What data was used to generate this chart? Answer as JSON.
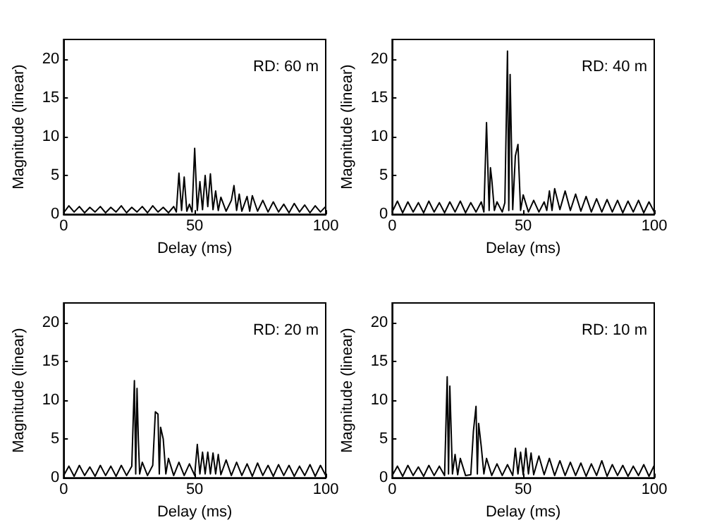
{
  "chart_data": [
    {
      "type": "line",
      "xlabel": "Delay (ms)",
      "ylabel": "Magnitude (linear)",
      "xlim": [
        0,
        100
      ],
      "xticks": [
        0,
        50,
        100
      ],
      "ylim": [
        0,
        22.5
      ],
      "yticks": [
        0,
        5,
        10,
        15,
        20
      ],
      "annotations": [
        "RD: 60 m"
      ],
      "grid": false,
      "marker": "none",
      "line_style": "solid",
      "series": [
        {
          "color": "#000000",
          "x": [
            0,
            2,
            4,
            6,
            8,
            10,
            12,
            14,
            16,
            18,
            20,
            22,
            24,
            26,
            28,
            30,
            32,
            34,
            36,
            38,
            40,
            42,
            43,
            44,
            45,
            46,
            47,
            48,
            49,
            50,
            51,
            52,
            53,
            54,
            55,
            56,
            57,
            58,
            59,
            60,
            62,
            64,
            65,
            66,
            67,
            68,
            70,
            71,
            72,
            74,
            76,
            78,
            80,
            82,
            84,
            86,
            88,
            90,
            92,
            94,
            96,
            98,
            100
          ],
          "values": [
            0.2,
            1.1,
            0.3,
            1.0,
            0.2,
            0.9,
            0.3,
            1.0,
            0.2,
            0.9,
            0.3,
            1.1,
            0.2,
            0.9,
            0.3,
            1.0,
            0.2,
            1.1,
            0.3,
            0.9,
            0.2,
            1.0,
            0.3,
            5.3,
            0.5,
            4.8,
            0.4,
            1.3,
            0.3,
            8.5,
            0.5,
            4.2,
            0.6,
            5.0,
            1.0,
            5.2,
            0.6,
            3.0,
            0.5,
            2.2,
            0.4,
            1.8,
            3.7,
            0.5,
            2.6,
            0.4,
            2.3,
            0.4,
            2.4,
            0.4,
            1.8,
            0.3,
            1.6,
            0.3,
            1.3,
            0.2,
            1.4,
            0.3,
            1.2,
            0.2,
            1.1,
            0.3,
            1.0
          ]
        }
      ]
    },
    {
      "type": "line",
      "xlabel": "Delay (ms)",
      "ylabel": "Magnitude (linear)",
      "xlim": [
        0,
        100
      ],
      "xticks": [
        0,
        50,
        100
      ],
      "ylim": [
        0,
        22.5
      ],
      "yticks": [
        0,
        5,
        10,
        15,
        20
      ],
      "annotations": [
        "RD: 40 m"
      ],
      "grid": false,
      "marker": "none",
      "line_style": "solid",
      "series": [
        {
          "color": "#000000",
          "x": [
            0,
            2,
            4,
            6,
            8,
            10,
            12,
            14,
            16,
            18,
            20,
            22,
            24,
            26,
            28,
            30,
            32,
            34,
            35,
            36,
            37,
            37.5,
            38,
            39,
            40,
            42,
            43,
            44,
            44.5,
            45,
            46,
            47,
            48,
            49,
            50,
            52,
            54,
            56,
            58,
            59,
            60,
            61,
            62,
            64,
            66,
            68,
            70,
            72,
            74,
            76,
            78,
            80,
            82,
            84,
            86,
            88,
            90,
            92,
            94,
            96,
            98,
            100
          ],
          "values": [
            0.3,
            1.7,
            0.2,
            1.6,
            0.3,
            1.5,
            0.2,
            1.7,
            0.3,
            1.5,
            0.2,
            1.6,
            0.3,
            1.7,
            0.2,
            1.5,
            0.3,
            1.6,
            0.3,
            11.8,
            0.5,
            6.0,
            4.5,
            0.5,
            1.6,
            0.3,
            1.5,
            21.0,
            0.5,
            18.0,
            0.6,
            7.5,
            9.0,
            0.5,
            2.5,
            0.3,
            1.8,
            0.3,
            1.6,
            0.5,
            3.0,
            0.5,
            3.3,
            0.6,
            3.0,
            0.5,
            2.6,
            0.4,
            2.3,
            0.3,
            2.0,
            0.3,
            1.9,
            0.3,
            1.8,
            0.2,
            1.7,
            0.3,
            1.8,
            0.2,
            1.6,
            0.3
          ]
        }
      ]
    },
    {
      "type": "line",
      "xlabel": "Delay (ms)",
      "ylabel": "Magnitude (linear)",
      "xlim": [
        0,
        100
      ],
      "xticks": [
        0,
        50,
        100
      ],
      "ylim": [
        0,
        22.5
      ],
      "yticks": [
        0,
        5,
        10,
        15,
        20
      ],
      "annotations": [
        "RD: 20 m"
      ],
      "grid": false,
      "marker": "none",
      "line_style": "solid",
      "series": [
        {
          "color": "#000000",
          "x": [
            0,
            2,
            4,
            6,
            8,
            10,
            12,
            14,
            16,
            18,
            20,
            22,
            24,
            26,
            27,
            27.5,
            28,
            28.5,
            29,
            30,
            32,
            34,
            35,
            36,
            36.5,
            37,
            38,
            39,
            40,
            42,
            44,
            46,
            48,
            50,
            51,
            52,
            53,
            54,
            55,
            56,
            57,
            58,
            59,
            60,
            62,
            64,
            66,
            68,
            70,
            72,
            74,
            76,
            78,
            80,
            82,
            84,
            86,
            88,
            90,
            92,
            94,
            96,
            98,
            100
          ],
          "values": [
            0.3,
            1.5,
            0.2,
            1.6,
            0.3,
            1.4,
            0.2,
            1.6,
            0.3,
            1.5,
            0.2,
            1.6,
            0.3,
            1.5,
            12.5,
            0.5,
            11.5,
            5.0,
            0.5,
            2.0,
            0.3,
            1.6,
            8.5,
            8.2,
            0.5,
            6.5,
            5.0,
            0.5,
            2.5,
            0.3,
            2.0,
            0.3,
            1.8,
            0.3,
            4.3,
            0.5,
            3.3,
            0.5,
            3.3,
            0.5,
            3.2,
            0.5,
            3.0,
            0.4,
            2.3,
            0.3,
            2.0,
            0.3,
            1.8,
            0.2,
            1.9,
            0.3,
            1.6,
            0.2,
            1.7,
            0.3,
            1.6,
            0.2,
            1.5,
            0.3,
            1.7,
            0.2,
            1.6,
            0.3
          ]
        }
      ]
    },
    {
      "type": "line",
      "xlabel": "Delay (ms)",
      "ylabel": "Magnitude (linear)",
      "xlim": [
        0,
        100
      ],
      "xticks": [
        0,
        50,
        100
      ],
      "ylim": [
        0,
        22.5
      ],
      "yticks": [
        0,
        5,
        10,
        15,
        20
      ],
      "annotations": [
        "RD: 10 m"
      ],
      "grid": false,
      "marker": "none",
      "line_style": "solid",
      "series": [
        {
          "color": "#000000",
          "x": [
            0,
            2,
            4,
            6,
            8,
            10,
            12,
            14,
            16,
            18,
            20,
            21,
            21.5,
            22,
            23,
            24,
            25,
            26,
            28,
            30,
            31,
            32,
            32.5,
            33,
            34,
            35,
            36,
            38,
            40,
            42,
            44,
            46,
            47,
            48,
            49,
            50,
            51,
            52,
            53,
            54,
            56,
            58,
            60,
            62,
            64,
            66,
            68,
            70,
            72,
            74,
            76,
            78,
            80,
            82,
            84,
            86,
            88,
            90,
            92,
            94,
            96,
            98,
            100
          ],
          "values": [
            0.3,
            1.5,
            0.2,
            1.6,
            0.3,
            1.4,
            0.2,
            1.6,
            0.3,
            1.5,
            0.3,
            13.0,
            0.5,
            11.8,
            0.5,
            3.0,
            0.4,
            2.5,
            0.3,
            0.4,
            6.0,
            9.2,
            0.5,
            7.0,
            4.0,
            0.5,
            2.5,
            0.3,
            1.8,
            0.3,
            1.7,
            0.3,
            3.8,
            0.5,
            3.3,
            0.4,
            3.8,
            0.5,
            3.2,
            0.4,
            2.8,
            0.4,
            2.5,
            0.3,
            2.2,
            0.3,
            2.0,
            0.3,
            1.9,
            0.2,
            1.8,
            0.3,
            2.2,
            0.2,
            1.7,
            0.3,
            1.6,
            0.2,
            1.5,
            0.3,
            1.7,
            0.2,
            1.6
          ]
        }
      ]
    }
  ]
}
